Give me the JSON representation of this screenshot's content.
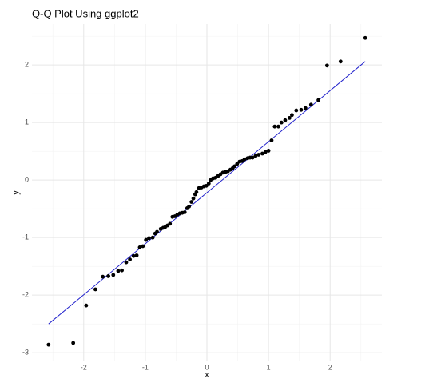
{
  "chart_data": {
    "type": "scatter",
    "title": "Q-Q Plot Using ggplot2",
    "x_label": "x",
    "y_label": "y",
    "xlim": [
      -2.84,
      2.84
    ],
    "ylim": [
      -3.15,
      2.71
    ],
    "xticks": [
      -2,
      -1,
      0,
      1,
      2
    ],
    "yticks": [
      -3,
      -2,
      -1,
      0,
      1,
      2
    ],
    "x_minor_ticks": [
      -2.5,
      -1.5,
      -0.5,
      0.5,
      1.5,
      2.5
    ],
    "y_minor_ticks": [
      -2.5,
      -1.5,
      -0.5,
      0.5,
      1.5,
      2.5
    ],
    "grid": true,
    "color": "#000000",
    "x": [
      -2.57,
      -2.17,
      -1.96,
      -1.81,
      -1.69,
      -1.6,
      -1.52,
      -1.44,
      -1.38,
      -1.31,
      -1.25,
      -1.19,
      -1.14,
      -1.09,
      -1.04,
      -0.99,
      -0.94,
      -0.88,
      -0.84,
      -0.81,
      -0.75,
      -0.71,
      -0.68,
      -0.64,
      -0.6,
      -0.56,
      -0.52,
      -0.48,
      -0.44,
      -0.4,
      -0.36,
      -0.32,
      -0.29,
      -0.25,
      -0.22,
      -0.19,
      -0.17,
      -0.13,
      -0.09,
      -0.05,
      -0.01,
      0.03,
      0.06,
      0.1,
      0.14,
      0.18,
      0.22,
      0.26,
      0.3,
      0.34,
      0.38,
      0.42,
      0.45,
      0.49,
      0.53,
      0.57,
      0.61,
      0.66,
      0.7,
      0.74,
      0.79,
      0.84,
      0.9,
      0.95,
      1.0,
      1.05,
      1.1,
      1.16,
      1.21,
      1.27,
      1.34,
      1.38,
      1.45,
      1.53,
      1.6,
      1.69,
      1.81,
      1.95,
      2.17,
      2.57
    ],
    "values": [
      -2.86,
      -2.83,
      -2.18,
      -1.9,
      -1.68,
      -1.67,
      -1.65,
      -1.58,
      -1.57,
      -1.43,
      -1.38,
      -1.32,
      -1.31,
      -1.17,
      -1.15,
      -1.04,
      -1.01,
      -1.0,
      -0.93,
      -0.9,
      -0.85,
      -0.83,
      -0.82,
      -0.79,
      -0.76,
      -0.64,
      -0.63,
      -0.6,
      -0.58,
      -0.57,
      -0.56,
      -0.49,
      -0.46,
      -0.38,
      -0.32,
      -0.25,
      -0.21,
      -0.14,
      -0.13,
      -0.11,
      -0.1,
      -0.06,
      0.0,
      0.03,
      0.04,
      0.07,
      0.1,
      0.13,
      0.14,
      0.15,
      0.18,
      0.21,
      0.24,
      0.28,
      0.32,
      0.33,
      0.36,
      0.38,
      0.39,
      0.39,
      0.42,
      0.44,
      0.46,
      0.49,
      0.51,
      0.69,
      0.93,
      0.93,
      1.0,
      1.04,
      1.08,
      1.13,
      1.21,
      1.22,
      1.25,
      1.31,
      1.39,
      1.99,
      2.06,
      2.47
    ],
    "line": {
      "color": "#2222cc",
      "x": [
        -2.57,
        2.57
      ],
      "y": [
        -2.5,
        2.06
      ]
    }
  }
}
